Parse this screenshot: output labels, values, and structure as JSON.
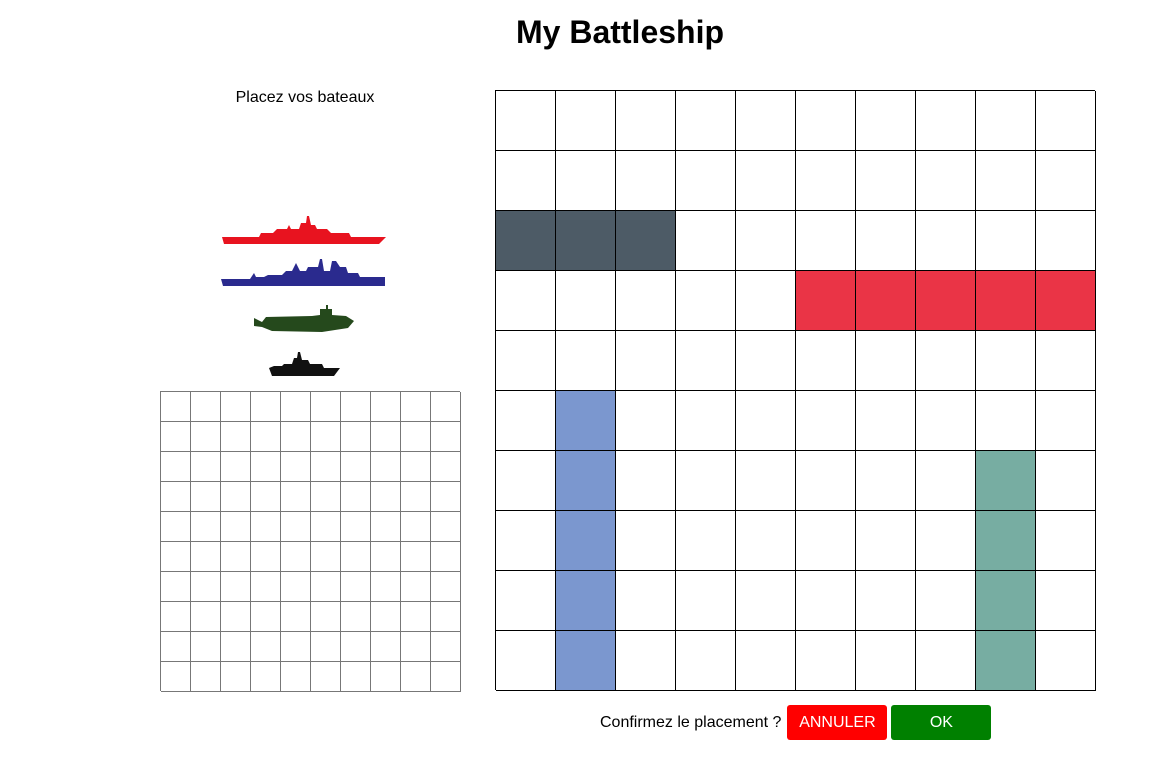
{
  "header": {
    "title": "My Battleship"
  },
  "placement": {
    "instructions": "Placez vos bateaux"
  },
  "ships": [
    {
      "name": "battleship",
      "color": "#e8131f"
    },
    {
      "name": "cruiser",
      "color": "#2a2a8e"
    },
    {
      "name": "submarine",
      "color": "#25491c"
    },
    {
      "name": "destroyer",
      "color": "#111111"
    }
  ],
  "board": {
    "rows": 10,
    "cols": 10,
    "empty_color": "#ffffff",
    "placed_ships": [
      {
        "ship": "dark",
        "color": "#4d5b66",
        "cells": [
          [
            2,
            0
          ],
          [
            2,
            1
          ],
          [
            2,
            2
          ]
        ]
      },
      {
        "ship": "red",
        "color": "#ea3446",
        "cells": [
          [
            3,
            5
          ],
          [
            3,
            6
          ],
          [
            3,
            7
          ],
          [
            3,
            8
          ],
          [
            3,
            9
          ]
        ]
      },
      {
        "ship": "blue",
        "color": "#7b97cf",
        "cells": [
          [
            5,
            1
          ],
          [
            6,
            1
          ],
          [
            7,
            1
          ],
          [
            8,
            1
          ],
          [
            9,
            1
          ]
        ]
      },
      {
        "ship": "teal",
        "color": "#77ada2",
        "cells": [
          [
            6,
            8
          ],
          [
            7,
            8
          ],
          [
            8,
            8
          ],
          [
            9,
            8
          ]
        ]
      }
    ]
  },
  "mini_board": {
    "rows": 10,
    "cols": 10
  },
  "confirm": {
    "label": "Confirmez le placement ?",
    "cancel_label": "ANNULER",
    "ok_label": "OK",
    "cancel_color": "#ff0000",
    "ok_color": "#008000"
  }
}
